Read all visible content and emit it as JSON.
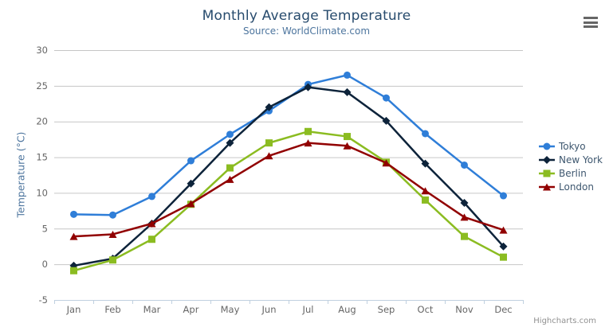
{
  "chart_data": {
    "type": "line",
    "title": "Monthly Average Temperature",
    "subtitle": "Source: WorldClimate.com",
    "categories": [
      "Jan",
      "Feb",
      "Mar",
      "Apr",
      "May",
      "Jun",
      "Jul",
      "Aug",
      "Sep",
      "Oct",
      "Nov",
      "Dec"
    ],
    "xlabel": "",
    "ylabel": "Temperature (°C)",
    "ylim": [
      -5,
      30
    ],
    "ytick_interval": 5,
    "grid": true,
    "legend_position": "right",
    "series": [
      {
        "name": "Tokyo",
        "color": "#2f7ed8",
        "marker": "circle",
        "values": [
          7.0,
          6.9,
          9.5,
          14.5,
          18.2,
          21.5,
          25.2,
          26.5,
          23.3,
          18.3,
          13.9,
          9.6
        ]
      },
      {
        "name": "New York",
        "color": "#0d233a",
        "marker": "diamond",
        "values": [
          -0.2,
          0.8,
          5.7,
          11.3,
          17.0,
          22.0,
          24.8,
          24.1,
          20.1,
          14.1,
          8.6,
          2.5
        ]
      },
      {
        "name": "Berlin",
        "color": "#8bbc21",
        "marker": "square",
        "values": [
          -0.9,
          0.6,
          3.5,
          8.4,
          13.5,
          17.0,
          18.6,
          17.9,
          14.3,
          9.0,
          3.9,
          1.0
        ]
      },
      {
        "name": "London",
        "color": "#910000",
        "marker": "triangle",
        "values": [
          3.9,
          4.2,
          5.7,
          8.5,
          11.9,
          15.2,
          17.0,
          16.6,
          14.2,
          10.3,
          6.6,
          4.8
        ]
      }
    ]
  },
  "credits": {
    "label": "Highcharts.com"
  },
  "colors": {
    "title": "#274b6d",
    "subtitle": "#4d759e",
    "axis_label": "#666666",
    "axis_title": "#4d759e",
    "legend_text": "#3e576f",
    "gridline": "#c6c6c6",
    "axis_line": "#c0d0e0",
    "credit": "#909090",
    "menu_icon": "#666666"
  }
}
